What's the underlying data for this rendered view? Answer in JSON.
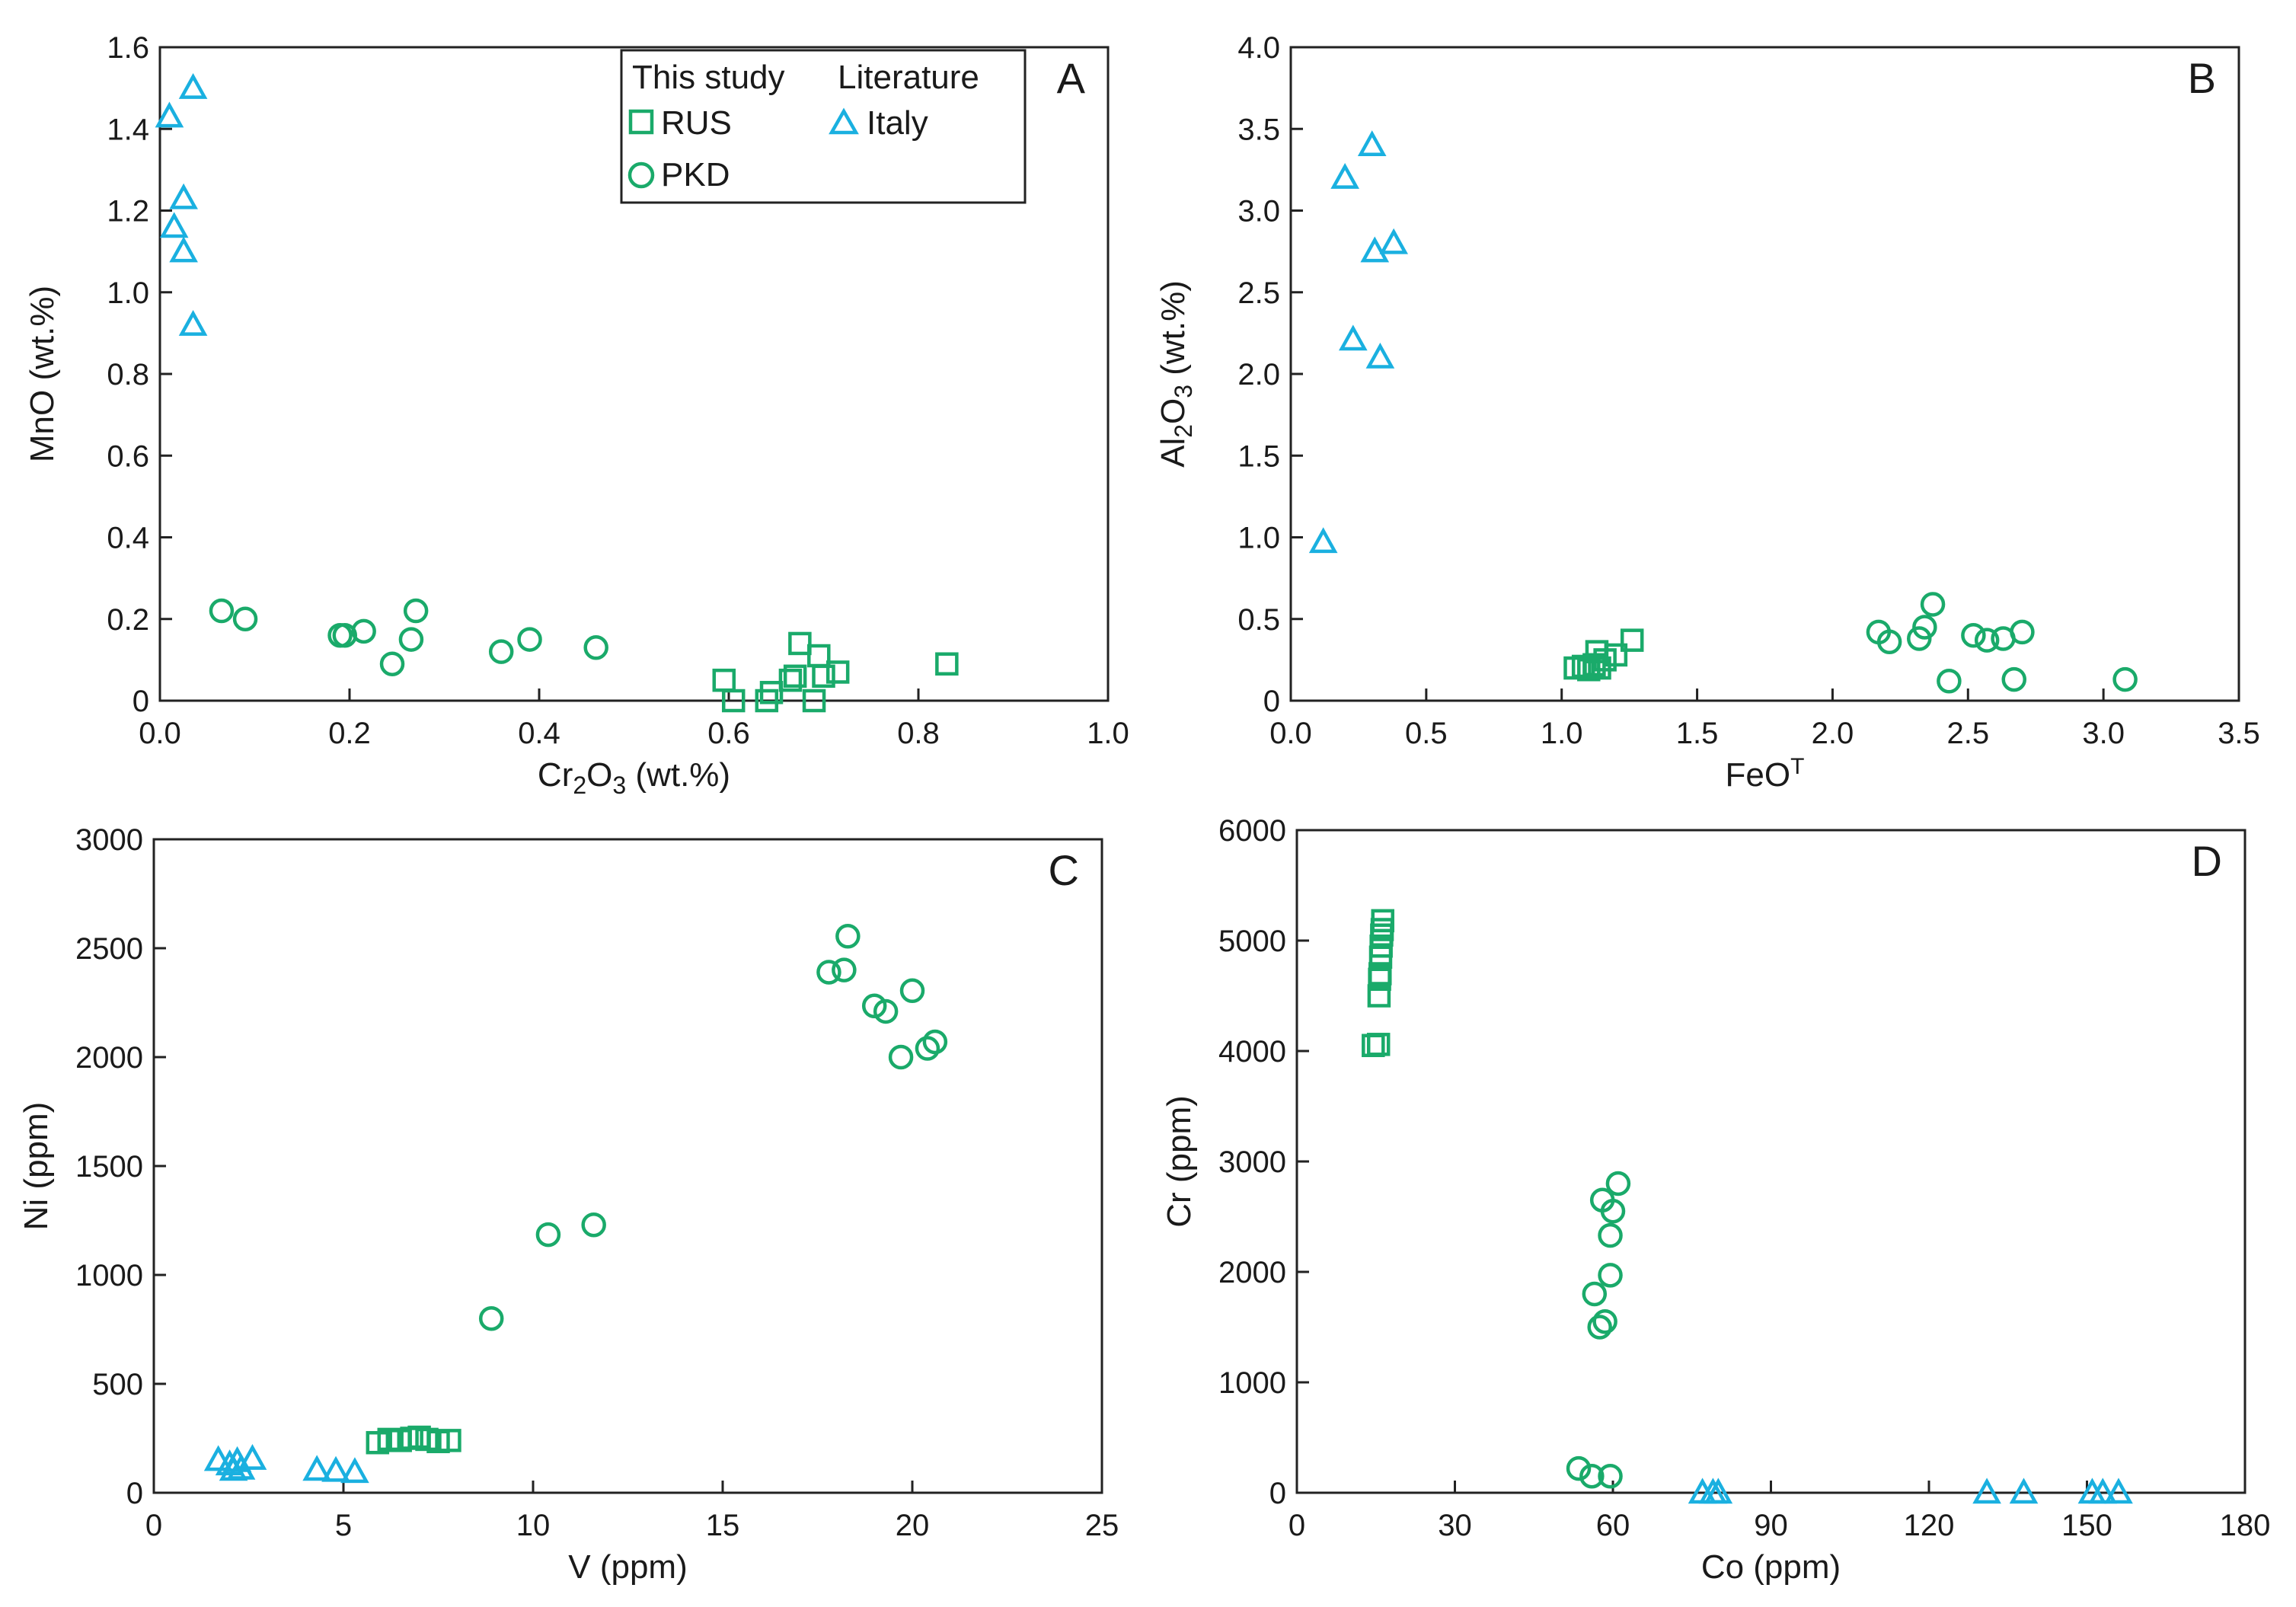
{
  "colors": {
    "this_study": "#1aaa6a",
    "literature": "#1ab0e0",
    "axis": "#222222"
  },
  "legend": {
    "this_study_heading": "This study",
    "literature_heading": "Literature",
    "rus": "RUS",
    "pkd": "PKD",
    "italy": "Italy"
  },
  "chart_data": [
    {
      "panel": "A",
      "type": "scatter",
      "xlabel": "Cr2O3 (wt.%)",
      "ylabel": "MnO (wt.%)",
      "xlim": [
        0,
        1.0
      ],
      "ylim": [
        0,
        1.6
      ],
      "xticks": [
        "0.0",
        "0.2",
        "0.4",
        "0.6",
        "0.8",
        "1.0"
      ],
      "yticks": [
        "0",
        "0.2",
        "0.4",
        "0.6",
        "0.8",
        "1.0",
        "1.2",
        "1.4",
        "1.6"
      ],
      "legend_position": "top-center",
      "series": [
        {
          "name": "RUS",
          "marker": "square",
          "points": [
            [
              0.595,
              0.05
            ],
            [
              0.605,
              0.0
            ],
            [
              0.64,
              0.0
            ],
            [
              0.645,
              0.02
            ],
            [
              0.665,
              0.05
            ],
            [
              0.67,
              0.06
            ],
            [
              0.675,
              0.14
            ],
            [
              0.69,
              0.0
            ],
            [
              0.695,
              0.11
            ],
            [
              0.7,
              0.06
            ],
            [
              0.715,
              0.07
            ],
            [
              0.83,
              0.09
            ]
          ]
        },
        {
          "name": "PKD",
          "marker": "circle",
          "points": [
            [
              0.065,
              0.22
            ],
            [
              0.09,
              0.2
            ],
            [
              0.19,
              0.16
            ],
            [
              0.195,
              0.16
            ],
            [
              0.215,
              0.17
            ],
            [
              0.245,
              0.09
            ],
            [
              0.265,
              0.15
            ],
            [
              0.27,
              0.22
            ],
            [
              0.36,
              0.12
            ],
            [
              0.39,
              0.15
            ],
            [
              0.46,
              0.13
            ]
          ]
        },
        {
          "name": "Italy",
          "marker": "triangle",
          "points": [
            [
              0.01,
              1.43
            ],
            [
              0.035,
              1.5
            ],
            [
              0.025,
              1.23
            ],
            [
              0.015,
              1.16
            ],
            [
              0.025,
              1.1
            ],
            [
              0.035,
              0.92
            ]
          ]
        }
      ]
    },
    {
      "panel": "B",
      "type": "scatter",
      "xlabel": "FeOT",
      "ylabel": "Al2O3 (wt.%)",
      "xlim": [
        0,
        3.5
      ],
      "ylim": [
        0,
        4.0
      ],
      "xticks": [
        "0.0",
        "0.5",
        "1.0",
        "1.5",
        "2.0",
        "2.5",
        "3.0",
        "3.5"
      ],
      "yticks": [
        "0",
        "0.5",
        "1.0",
        "1.5",
        "2.0",
        "2.5",
        "3.0",
        "3.5",
        "4.0"
      ],
      "series": [
        {
          "name": "RUS",
          "marker": "square",
          "points": [
            [
              1.05,
              0.2
            ],
            [
              1.08,
              0.21
            ],
            [
              1.1,
              0.19
            ],
            [
              1.12,
              0.22
            ],
            [
              1.13,
              0.3
            ],
            [
              1.14,
              0.2
            ],
            [
              1.16,
              0.25
            ],
            [
              1.2,
              0.28
            ],
            [
              1.26,
              0.37
            ]
          ]
        },
        {
          "name": "PKD",
          "marker": "circle",
          "points": [
            [
              2.17,
              0.42
            ],
            [
              2.21,
              0.36
            ],
            [
              2.32,
              0.38
            ],
            [
              2.34,
              0.45
            ],
            [
              2.37,
              0.59
            ],
            [
              2.43,
              0.12
            ],
            [
              2.52,
              0.4
            ],
            [
              2.57,
              0.37
            ],
            [
              2.63,
              0.38
            ],
            [
              2.67,
              0.13
            ],
            [
              2.7,
              0.42
            ],
            [
              3.08,
              0.13
            ]
          ]
        },
        {
          "name": "Italy",
          "marker": "triangle",
          "points": [
            [
              0.12,
              0.97
            ],
            [
              0.2,
              3.2
            ],
            [
              0.3,
              3.4
            ],
            [
              0.38,
              2.8
            ],
            [
              0.31,
              2.75
            ],
            [
              0.23,
              2.21
            ],
            [
              0.33,
              2.1
            ]
          ]
        }
      ]
    },
    {
      "panel": "C",
      "type": "scatter",
      "xlabel": "V (ppm)",
      "ylabel": "Ni (ppm)",
      "xlim": [
        0,
        25
      ],
      "ylim": [
        0,
        3000
      ],
      "xticks": [
        "0",
        "5",
        "10",
        "15",
        "20",
        "25"
      ],
      "yticks": [
        "0",
        "500",
        "1000",
        "1500",
        "2000",
        "2500",
        "3000"
      ],
      "series": [
        {
          "name": "RUS",
          "marker": "square",
          "points": [
            [
              5.9,
              230
            ],
            [
              6.2,
              245
            ],
            [
              6.5,
              240
            ],
            [
              6.8,
              250
            ],
            [
              7.0,
              255
            ],
            [
              7.2,
              245
            ],
            [
              7.5,
              235
            ],
            [
              7.8,
              240
            ]
          ]
        },
        {
          "name": "PKD",
          "marker": "circle",
          "points": [
            [
              8.9,
              800
            ],
            [
              10.4,
              1185
            ],
            [
              11.6,
              1230
            ],
            [
              17.8,
              2390
            ],
            [
              18.2,
              2400
            ],
            [
              18.3,
              2555
            ],
            [
              19.0,
              2235
            ],
            [
              19.3,
              2210
            ],
            [
              19.7,
              2000
            ],
            [
              20.0,
              2305
            ],
            [
              20.4,
              2040
            ],
            [
              20.6,
              2070
            ]
          ]
        },
        {
          "name": "Italy",
          "marker": "triangle",
          "points": [
            [
              1.7,
              150
            ],
            [
              2.0,
              130
            ],
            [
              2.1,
              105
            ],
            [
              2.2,
              145
            ],
            [
              2.3,
              110
            ],
            [
              2.6,
              155
            ],
            [
              4.3,
              105
            ],
            [
              4.8,
              100
            ],
            [
              5.3,
              95
            ]
          ]
        }
      ]
    },
    {
      "panel": "D",
      "type": "scatter",
      "xlabel": "Co (ppm)",
      "ylabel": "Cr (ppm)",
      "xlim": [
        0,
        180
      ],
      "ylim": [
        0,
        6000
      ],
      "xticks": [
        "0",
        "30",
        "60",
        "90",
        "120",
        "150",
        "180"
      ],
      "yticks": [
        "0",
        "1000",
        "2000",
        "3000",
        "4000",
        "5000",
        "6000"
      ],
      "series": [
        {
          "name": "RUS",
          "marker": "square",
          "points": [
            [
              14.5,
              4050
            ],
            [
              15.5,
              4060
            ],
            [
              15.6,
              4500
            ],
            [
              15.7,
              4650
            ],
            [
              15.8,
              4700
            ],
            [
              15.9,
              4850
            ],
            [
              16.0,
              4950
            ],
            [
              16.1,
              5050
            ],
            [
              16.2,
              5100
            ],
            [
              16.3,
              5180
            ]
          ]
        },
        {
          "name": "PKD",
          "marker": "circle",
          "points": [
            [
              53.5,
              220
            ],
            [
              56.0,
              150
            ],
            [
              59.5,
              150
            ],
            [
              56.5,
              1800
            ],
            [
              57.5,
              1500
            ],
            [
              58.5,
              1550
            ],
            [
              59.5,
              1970
            ],
            [
              59.5,
              2330
            ],
            [
              58.0,
              2650
            ],
            [
              60.0,
              2550
            ],
            [
              61.0,
              2800
            ]
          ]
        },
        {
          "name": "Italy",
          "marker": "triangle",
          "points": [
            [
              77,
              0
            ],
            [
              79,
              0
            ],
            [
              80,
              0
            ],
            [
              131,
              0
            ],
            [
              138,
              0
            ],
            [
              151,
              0
            ],
            [
              153,
              0
            ],
            [
              156,
              0
            ]
          ]
        }
      ]
    }
  ]
}
